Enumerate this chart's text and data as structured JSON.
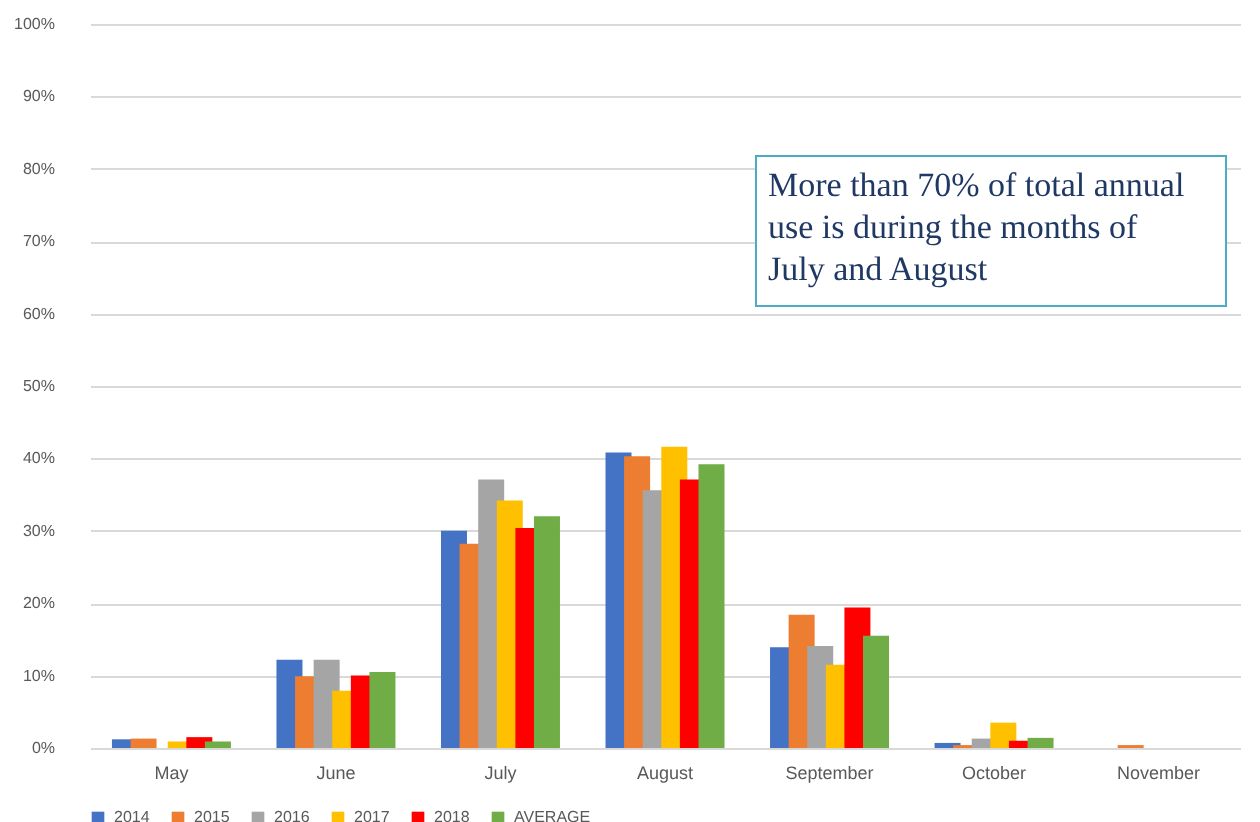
{
  "chart_data": {
    "type": "bar",
    "categories": [
      "May",
      "June",
      "July",
      "August",
      "September",
      "October",
      "November"
    ],
    "series": [
      {
        "name": "2014",
        "color": "#4472c4",
        "values": [
          1.2,
          12.2,
          30.0,
          40.8,
          13.9,
          0.7,
          null
        ]
      },
      {
        "name": "2015",
        "color": "#ed7d31",
        "values": [
          1.3,
          9.9,
          28.2,
          40.3,
          18.4,
          0.4,
          0.4
        ]
      },
      {
        "name": "2016",
        "color": "#a5a5a5",
        "values": [
          null,
          12.2,
          37.1,
          35.6,
          14.1,
          1.3,
          null
        ]
      },
      {
        "name": "2017",
        "color": "#ffc000",
        "values": [
          0.9,
          7.9,
          34.2,
          41.6,
          11.5,
          3.5,
          null
        ]
      },
      {
        "name": "2018",
        "color": "#ff0000",
        "values": [
          1.5,
          10.0,
          30.4,
          37.1,
          19.4,
          1.0,
          null
        ]
      },
      {
        "name": "AVERAGE",
        "color": "#70ad47",
        "values": [
          0.9,
          10.5,
          32.0,
          39.2,
          15.5,
          1.4,
          null
        ]
      }
    ],
    "ylim": [
      0,
      100
    ],
    "yticks": [
      {
        "value": 0,
        "label": "0%"
      },
      {
        "value": 10,
        "label": "10%"
      },
      {
        "value": 20,
        "label": "20%"
      },
      {
        "value": 30,
        "label": "30%"
      },
      {
        "value": 40,
        "label": "40%"
      },
      {
        "value": 50,
        "label": "50%"
      },
      {
        "value": 60,
        "label": "60%"
      },
      {
        "value": 70,
        "label": "70%"
      },
      {
        "value": 80,
        "label": "80%"
      },
      {
        "value": 90,
        "label": "90%"
      },
      {
        "value": 100,
        "label": "100%"
      }
    ],
    "grid": "y",
    "legend": "bottom",
    "annotations": [
      "More than 70% of total annual use is during the months of July and August"
    ]
  }
}
